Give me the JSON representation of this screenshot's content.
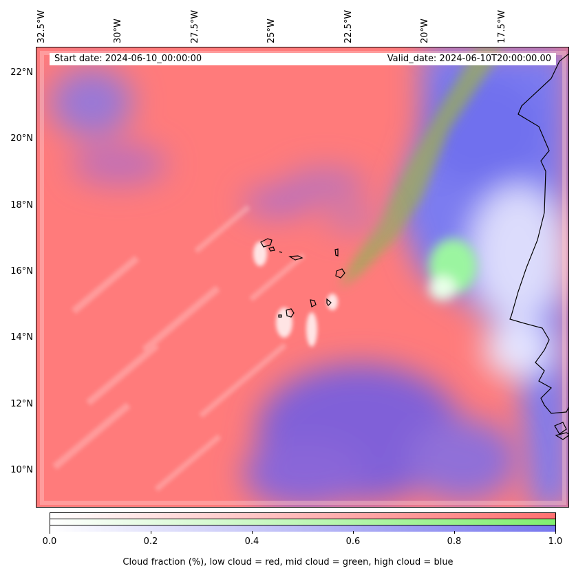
{
  "info": {
    "start_date": "Start date: 2024-06-10_00:00:00",
    "valid_date": "Valid_date: 2024-06-10T20:00:00.00"
  },
  "map": {
    "lat_labels": [
      "22°N",
      "20°N",
      "18°N",
      "16°N",
      "14°N",
      "12°N",
      "10°N"
    ],
    "lon_labels": [
      "32.5°W",
      "30°W",
      "27.5°W",
      "25°W",
      "22.5°W",
      "20°W",
      "17.5°W"
    ],
    "lon_range": [
      -33,
      -15.6
    ],
    "lat_range": [
      8.8,
      22.8
    ],
    "colors": {
      "low_cloud": "#ff7b7b",
      "mid_cloud": "#86ee86",
      "high_cloud": "#7b7bf0"
    }
  },
  "colorbar": {
    "ticks": [
      "0.0",
      "0.2",
      "0.4",
      "0.6",
      "0.8",
      "1.0"
    ],
    "caption": "Cloud fraction (%), low cloud = red, mid cloud = green, high cloud = blue"
  }
}
